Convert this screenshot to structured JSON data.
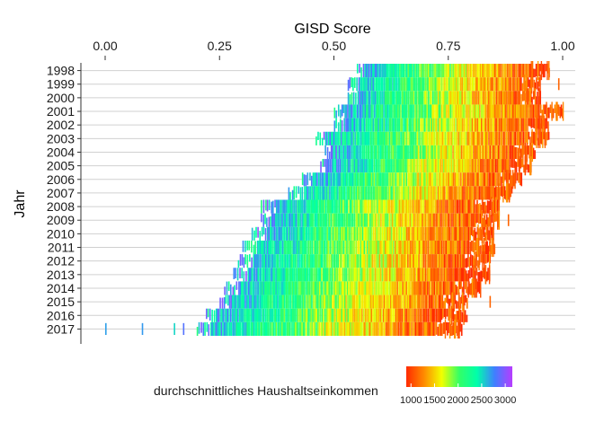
{
  "chart_data": {
    "type": "heatmap",
    "title": "",
    "xlabel": "GISD Score",
    "ylabel": "Jahr",
    "x_axis_position": "top",
    "xlim": [
      0,
      1
    ],
    "x_ticks": [
      "0.00",
      "0.25",
      "0.50",
      "0.75",
      "1.00"
    ],
    "categories": [
      "1998",
      "1999",
      "2000",
      "2001",
      "2002",
      "2003",
      "2004",
      "2005",
      "2006",
      "2007",
      "2008",
      "2009",
      "2010",
      "2011",
      "2012",
      "2013",
      "2014",
      "2015",
      "2016",
      "2017"
    ],
    "rows": [
      {
        "year": "1998",
        "min": 0.55,
        "dense_start": 0.56,
        "max": 0.97,
        "outliers": []
      },
      {
        "year": "1999",
        "min": 0.53,
        "dense_start": 0.55,
        "max": 0.95,
        "outliers": [
          0.99
        ]
      },
      {
        "year": "2000",
        "min": 0.53,
        "dense_start": 0.55,
        "max": 0.95,
        "outliers": []
      },
      {
        "year": "2001",
        "min": 0.5,
        "dense_start": 0.52,
        "max": 1.0,
        "outliers": []
      },
      {
        "year": "2002",
        "min": 0.5,
        "dense_start": 0.52,
        "max": 0.97,
        "outliers": []
      },
      {
        "year": "2003",
        "min": 0.46,
        "dense_start": 0.48,
        "max": 0.97,
        "outliers": []
      },
      {
        "year": "2004",
        "min": 0.48,
        "dense_start": 0.49,
        "max": 0.94,
        "outliers": []
      },
      {
        "year": "2005",
        "min": 0.47,
        "dense_start": 0.48,
        "max": 0.93,
        "outliers": []
      },
      {
        "year": "2006",
        "min": 0.43,
        "dense_start": 0.45,
        "max": 0.91,
        "outliers": []
      },
      {
        "year": "2007",
        "min": 0.4,
        "dense_start": 0.43,
        "max": 0.89,
        "outliers": []
      },
      {
        "year": "2008",
        "min": 0.34,
        "dense_start": 0.37,
        "max": 0.86,
        "outliers": []
      },
      {
        "year": "2009",
        "min": 0.34,
        "dense_start": 0.36,
        "max": 0.86,
        "outliers": [
          0.88
        ]
      },
      {
        "year": "2010",
        "min": 0.32,
        "dense_start": 0.35,
        "max": 0.85,
        "outliers": []
      },
      {
        "year": "2011",
        "min": 0.3,
        "dense_start": 0.33,
        "max": 0.85,
        "outliers": []
      },
      {
        "year": "2012",
        "min": 0.29,
        "dense_start": 0.32,
        "max": 0.84,
        "outliers": []
      },
      {
        "year": "2013",
        "min": 0.28,
        "dense_start": 0.31,
        "max": 0.84,
        "outliers": []
      },
      {
        "year": "2014",
        "min": 0.26,
        "dense_start": 0.29,
        "max": 0.82,
        "outliers": []
      },
      {
        "year": "2015",
        "min": 0.25,
        "dense_start": 0.27,
        "max": 0.79,
        "outliers": [
          0.84
        ]
      },
      {
        "year": "2016",
        "min": 0.22,
        "dense_start": 0.24,
        "max": 0.79,
        "outliers": []
      },
      {
        "year": "2017",
        "min": 0.2,
        "dense_start": 0.23,
        "max": 0.78,
        "outliers": [
          0.0,
          0.08,
          0.15,
          0.17
        ]
      }
    ],
    "color_by": "durchschnittliches Haushaltseinkommen",
    "legend": {
      "title": "durchschnittliches Haushaltseinkommen",
      "position": "bottom",
      "ticks": [
        "1000",
        "1500",
        "2000",
        "2500",
        "3000"
      ],
      "range": [
        900,
        3150
      ],
      "colors": [
        "#ff2a00",
        "#ff8a00",
        "#f2ff00",
        "#33ff66",
        "#00ffaa",
        "#3f7fff",
        "#b83cff"
      ]
    },
    "grid": true
  }
}
